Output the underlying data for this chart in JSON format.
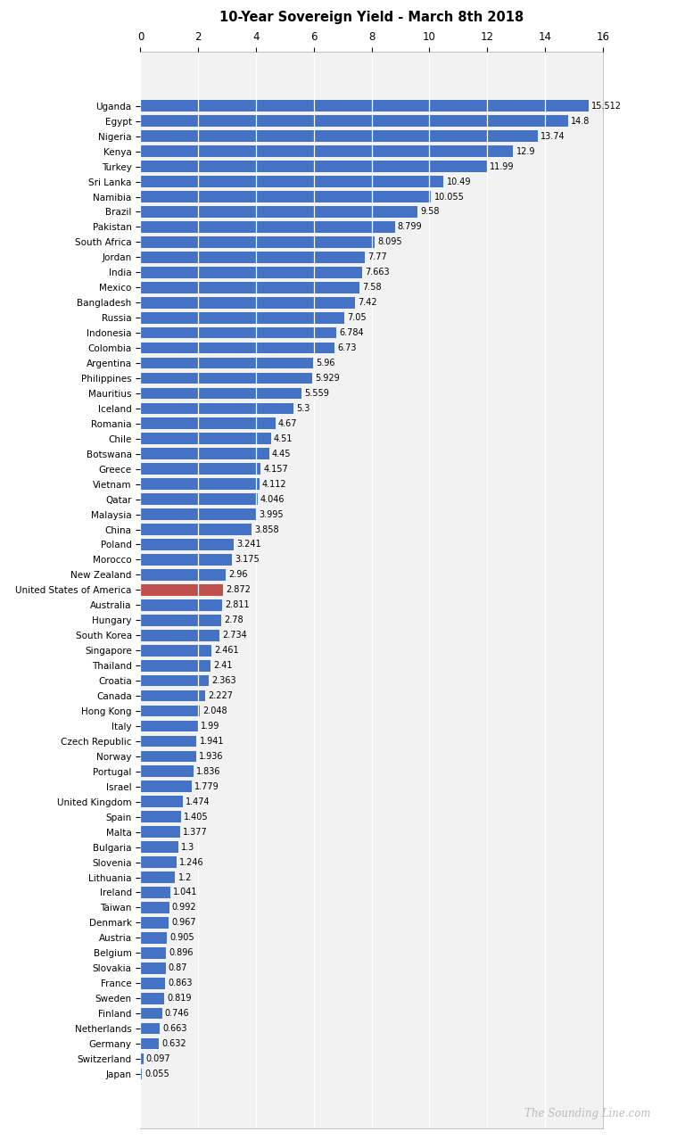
{
  "title": "10-Year Sovereign Yield - March 8th 2018",
  "watermark": "The Sounding Line.com",
  "bar_color": "#4472C4",
  "highlight_color": "#C0504D",
  "highlight_country": "United States of America",
  "xlim": [
    0,
    16
  ],
  "xticks": [
    0,
    2,
    4,
    6,
    8,
    10,
    12,
    14,
    16
  ],
  "bg_color": "#F2F2F2",
  "countries": [
    "Uganda",
    "Egypt",
    "Nigeria",
    "Kenya",
    "Turkey",
    "Sri Lanka",
    "Namibia",
    "Brazil",
    "Pakistan",
    "South Africa",
    "Jordan",
    "India",
    "Mexico",
    "Bangladesh",
    "Russia",
    "Indonesia",
    "Colombia",
    "Argentina",
    "Philippines",
    "Mauritius",
    "Iceland",
    "Romania",
    "Chile",
    "Botswana",
    "Greece",
    "Vietnam",
    "Qatar",
    "Malaysia",
    "China",
    "Poland",
    "Morocco",
    "New Zealand",
    "United States of America",
    "Australia",
    "Hungary",
    "South Korea",
    "Singapore",
    "Thailand",
    "Croatia",
    "Canada",
    "Hong Kong",
    "Italy",
    "Czech Republic",
    "Norway",
    "Portugal",
    "Israel",
    "United Kingdom",
    "Spain",
    "Malta",
    "Bulgaria",
    "Slovenia",
    "Lithuania",
    "Ireland",
    "Taiwan",
    "Denmark",
    "Austria",
    "Belgium",
    "Slovakia",
    "France",
    "Sweden",
    "Finland",
    "Netherlands",
    "Germany",
    "Switzerland",
    "Japan"
  ],
  "values": [
    15.512,
    14.8,
    13.74,
    12.9,
    11.99,
    10.49,
    10.055,
    9.58,
    8.799,
    8.095,
    7.77,
    7.663,
    7.58,
    7.42,
    7.05,
    6.784,
    6.73,
    5.96,
    5.929,
    5.559,
    5.3,
    4.67,
    4.51,
    4.45,
    4.157,
    4.112,
    4.046,
    3.995,
    3.858,
    3.241,
    3.175,
    2.96,
    2.872,
    2.811,
    2.78,
    2.734,
    2.461,
    2.41,
    2.363,
    2.227,
    2.048,
    1.99,
    1.941,
    1.936,
    1.836,
    1.779,
    1.474,
    1.405,
    1.377,
    1.3,
    1.246,
    1.2,
    1.041,
    0.992,
    0.967,
    0.905,
    0.896,
    0.87,
    0.863,
    0.819,
    0.746,
    0.663,
    0.632,
    0.097,
    0.055
  ]
}
